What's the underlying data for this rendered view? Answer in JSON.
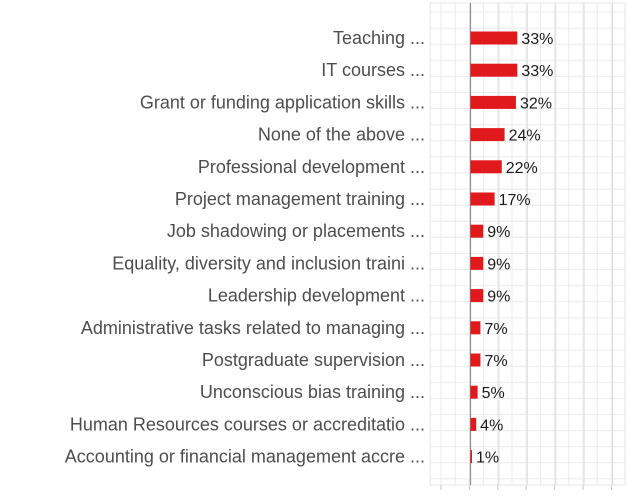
{
  "chart_data": {
    "type": "bar",
    "orientation": "horizontal",
    "categories": [
      "Teaching  ...",
      "IT courses  ...",
      "Grant or funding application skills ...",
      "None of the above ...",
      "Professional development ...",
      "Project management training  ...",
      "Job shadowing or placements  ...",
      "Equality, diversity and inclusion traini ...",
      "Leadership development  ...",
      "Administrative tasks related to managing ...",
      "Postgraduate supervision ...",
      "Unconscious bias training  ...",
      "Human Resources  courses or accreditatio ...",
      "Accounting or financial management accre ..."
    ],
    "values": [
      33,
      33,
      32,
      24,
      22,
      17,
      9,
      9,
      9,
      7,
      7,
      5,
      4,
      1
    ],
    "value_labels": [
      "33%",
      "33%",
      "32%",
      "24%",
      "22%",
      "17%",
      "9%",
      "9%",
      "9%",
      "7%",
      "7%",
      "5%",
      "4%",
      "1%"
    ],
    "xlim": [
      0,
      100
    ],
    "grid": true,
    "bar_color": "#e0191c",
    "title": "",
    "xlabel": "",
    "ylabel": ""
  }
}
